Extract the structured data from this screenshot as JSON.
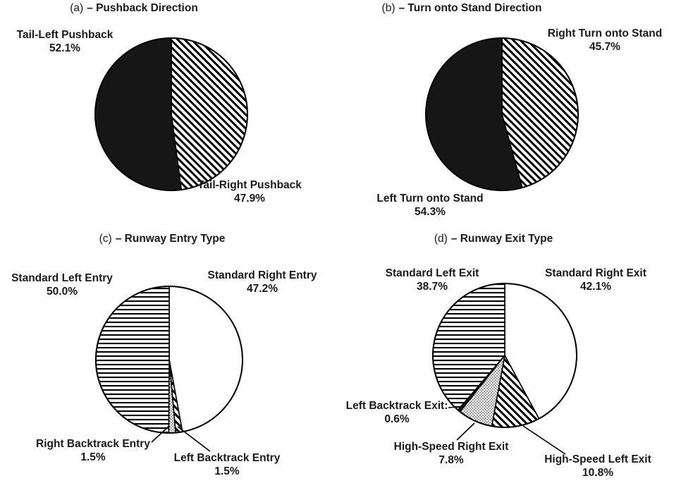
{
  "figure": {
    "background": "#ffffff",
    "text_color": "#1a1a1a",
    "stroke_color": "#000000"
  },
  "chart_data": [
    {
      "type": "pie",
      "panel_label": "(a)",
      "title": "– Pushback Direction",
      "start_angle": "12-o-clock",
      "direction": "clockwise",
      "slices": [
        {
          "label": "Tail-Right Pushback",
          "value": 47.9,
          "pct_text": "47.9%",
          "pattern": "diagonal-hatch"
        },
        {
          "label": "Tail-Left Pushback",
          "value": 52.1,
          "pct_text": "52.1%",
          "pattern": "solid-black"
        }
      ]
    },
    {
      "type": "pie",
      "panel_label": "(b)",
      "title": "– Turn onto Stand Direction",
      "start_angle": "12-o-clock",
      "direction": "clockwise",
      "slices": [
        {
          "label": "Right Turn onto Stand",
          "value": 45.7,
          "pct_text": "45.7%",
          "pattern": "diagonal-hatch"
        },
        {
          "label": "Left Turn onto Stand",
          "value": 54.3,
          "pct_text": "54.3%",
          "pattern": "solid-black"
        }
      ]
    },
    {
      "type": "pie",
      "panel_label": "(c)",
      "title": "– Runway Entry Type",
      "start_angle": "12-o-clock",
      "direction": "clockwise",
      "slices": [
        {
          "label": "Standard Right Entry",
          "value": 47.2,
          "pct_text": "47.2%",
          "pattern": "white"
        },
        {
          "label": "Left Backtrack Entry",
          "value": 1.5,
          "pct_text": "1.5%",
          "pattern": "diagonal-hatch"
        },
        {
          "label": "Right Backtrack Entry",
          "value": 1.5,
          "pct_text": "1.5%",
          "pattern": "dots"
        },
        {
          "label": "Standard Left Entry",
          "value": 50.0,
          "pct_text": "50.0%",
          "pattern": "horizontal-lines"
        }
      ]
    },
    {
      "type": "pie",
      "panel_label": "(d)",
      "title": "– Runway Exit Type",
      "start_angle": "12-o-clock",
      "direction": "clockwise",
      "slices": [
        {
          "label": "Standard Right Exit",
          "value": 42.1,
          "pct_text": "42.1%",
          "pattern": "white"
        },
        {
          "label": "High-Speed Left Exit",
          "value": 10.8,
          "pct_text": "10.8%",
          "pattern": "diagonal-hatch"
        },
        {
          "label": "High-Speed Right Exit",
          "value": 7.8,
          "pct_text": "7.8%",
          "pattern": "dots"
        },
        {
          "label": "Left Backtrack Exit:",
          "value": 0.6,
          "pct_text": "0.6%",
          "pattern": "solid-black"
        },
        {
          "label": "Standard Left Exit",
          "value": 38.7,
          "pct_text": "38.7%",
          "pattern": "horizontal-lines"
        }
      ]
    }
  ]
}
